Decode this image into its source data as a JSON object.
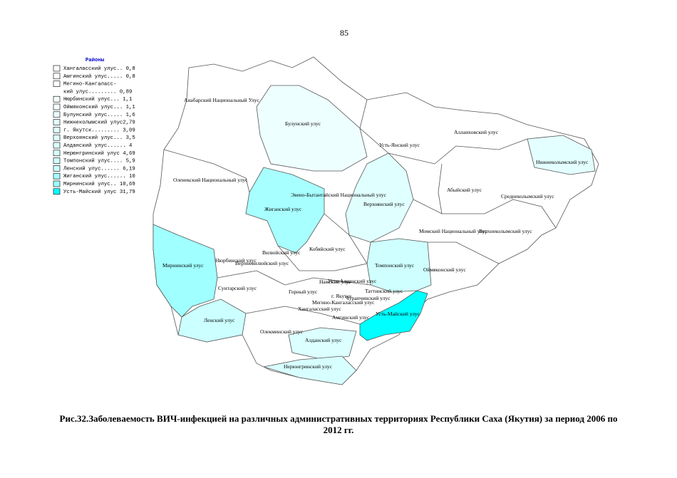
{
  "page_number": "85",
  "legend": {
    "title": "Районы",
    "items": [
      {
        "lines": [
          "Хангаласский улус.. 0,8"
        ],
        "color": "#ffffff"
      },
      {
        "lines": [
          "Амгинский улус..... 0,8"
        ],
        "color": "#ffffff"
      },
      {
        "lines": [
          "Мегино-Кангаласс-",
          "кий улус......... 0,89"
        ],
        "color": "#ffffff"
      },
      {
        "lines": [
          "Нюрбинский улус... 1,1"
        ],
        "color": "#f4ffff"
      },
      {
        "lines": [
          "Оймяконский улус... 1,1"
        ],
        "color": "#f4ffff"
      },
      {
        "lines": [
          "Булунский улус..... 1,6"
        ],
        "color": "#eeffff"
      },
      {
        "lines": [
          "Нижнеколымский улус2,79"
        ],
        "color": "#e4ffff"
      },
      {
        "lines": [
          "г. Якутск......... 3,09"
        ],
        "color": "#e2ffff"
      },
      {
        "lines": [
          "Верхоянский улус... 3,5"
        ],
        "color": "#e0ffff"
      },
      {
        "lines": [
          "Алданский улус...... 4"
        ],
        "color": "#dcffff"
      },
      {
        "lines": [
          "Нерюнгринский улус 4,69"
        ],
        "color": "#d8ffff"
      },
      {
        "lines": [
          "Томпонский улус.... 5,9"
        ],
        "color": "#cfffff"
      },
      {
        "lines": [
          "Ленский улус...... 6,19"
        ],
        "color": "#ccffff"
      },
      {
        "lines": [
          "Жиганский улус...... 10"
        ],
        "color": "#a8ffff"
      },
      {
        "lines": [
          "Мирнинский улус.. 10,69"
        ],
        "color": "#a0ffff"
      },
      {
        "lines": [
          "Усть-Майский улус 31,79"
        ],
        "color": "#00ffff"
      }
    ]
  },
  "map": {
    "labels": [
      "Анабарский Национальный Улус",
      "Булунский улус",
      "Усть-Янский улус",
      "Аллаиховский улус",
      "Нижнеколымский улус",
      "Оленекский Национальный улус",
      "Эвено-Бытантайский Национальный улус",
      "Верхоянский улус",
      "Абыйский улус",
      "Среднеколымский улус",
      "Жиганский улус",
      "Кобяйский улус",
      "Момский Национальный улус",
      "Верхнеколымский улус",
      "Нюрбинский улус",
      "Верхневилюйский улус",
      "Вилюйский улус",
      "Мирнинский улус",
      "Томпонский улус",
      "Оймяконский улус",
      "Сунтарский улус",
      "Горный улус",
      "Намский улус",
      "Усть-Алданский улус",
      "Таттинский улус",
      "г. Якутск",
      "Чурапчинский улус",
      "Мегино-Кангаласский улус",
      "Хангаласский улус",
      "Амгинский улус",
      "Усть-Майский улус",
      "Ленский улус",
      "Олекминский улус",
      "Алданский улус",
      "Нерюнгринский улус"
    ]
  },
  "caption": [
    "Рис.32.Заболеваемость ВИЧ-инфекцией на различных административных территориях Республики Саха (Якутия) за период 2006 по",
    "2012 гг."
  ]
}
